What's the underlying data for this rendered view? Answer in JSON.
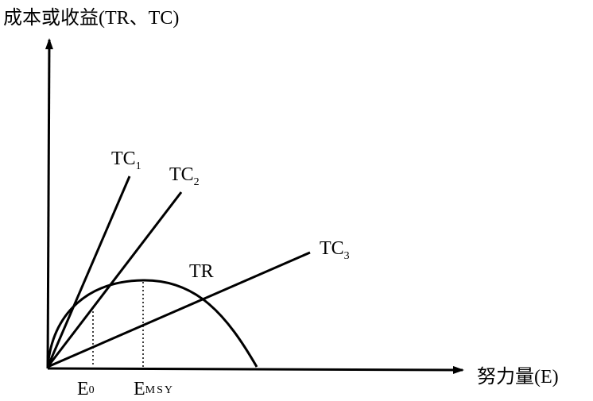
{
  "axes": {
    "y_label": "成本或收益(TR、TC)",
    "x_label": "努力量(E)"
  },
  "curves": [
    {
      "main": "TC",
      "sub": "1"
    },
    {
      "main": "TC",
      "sub": "2"
    },
    {
      "main": "TC",
      "sub": "3"
    },
    {
      "main": "TR"
    }
  ],
  "points": [
    {
      "main": "E",
      "sub": "0"
    },
    {
      "main": "E",
      "sub": "MSY"
    }
  ]
}
